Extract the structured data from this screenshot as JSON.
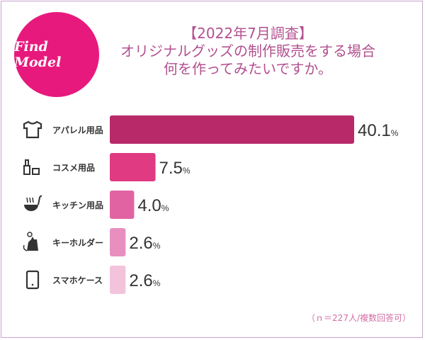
{
  "logo": {
    "text": "Find Model",
    "color": "#e8197d"
  },
  "title": {
    "line1": "【2022年7月調査】",
    "line2": "オリジナルグッズの制作販売をする場合",
    "line3": "何を作ってみたいですか。"
  },
  "footnote": "（ｎ＝227人/複数回答可）",
  "chart_data": {
    "type": "bar",
    "orientation": "horizontal",
    "categories": [
      "アパレル用品",
      "コスメ用品",
      "キッチン用品",
      "キーホルダー",
      "スマホケース"
    ],
    "icons": [
      "tshirt-icon",
      "cosmetics-icon",
      "ladle-icon",
      "cat-keychain-icon",
      "smartphone-icon"
    ],
    "values": [
      40.1,
      7.5,
      4.0,
      2.6,
      2.6
    ],
    "value_labels": [
      "40.1",
      "7.5",
      "4.0",
      "2.6",
      "2.6"
    ],
    "unit": "%",
    "colors": [
      "#b8296a",
      "#df3a82",
      "#e163a2",
      "#e98fc0",
      "#f3c3dc"
    ],
    "grid": false
  }
}
